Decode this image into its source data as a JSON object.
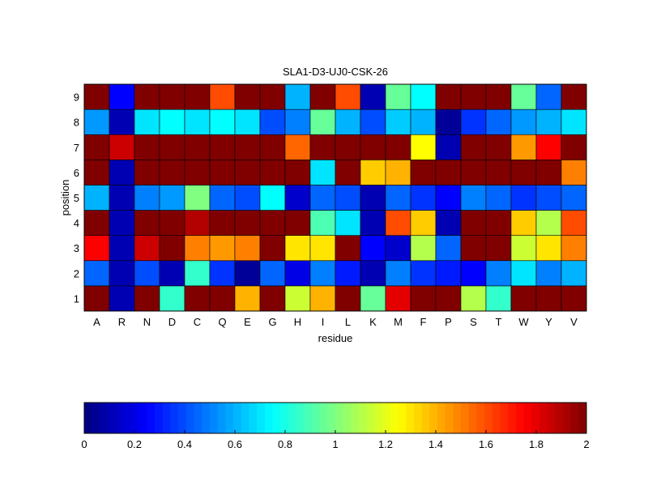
{
  "chart_data": {
    "type": "heatmap",
    "title": "SLA1-D3-UJ0-CSK-26",
    "xlabel": "residue",
    "ylabel": "position",
    "x_categories": [
      "A",
      "R",
      "N",
      "D",
      "C",
      "Q",
      "E",
      "G",
      "H",
      "I",
      "L",
      "K",
      "M",
      "F",
      "P",
      "S",
      "T",
      "W",
      "Y",
      "V"
    ],
    "y_categories": [
      "1",
      "2",
      "3",
      "4",
      "5",
      "6",
      "7",
      "8",
      "9"
    ],
    "values": [
      [
        2.0,
        0.1,
        2.0,
        0.85,
        2.0,
        2.0,
        1.4,
        2.0,
        1.15,
        1.4,
        2.0,
        0.95,
        1.8,
        2.0,
        2.0,
        1.1,
        0.85,
        2.0,
        2.0,
        2.0
      ],
      [
        0.45,
        0.1,
        0.4,
        0.1,
        0.85,
        0.35,
        0.05,
        0.45,
        0.2,
        0.5,
        0.3,
        0.1,
        0.5,
        0.35,
        0.3,
        0.25,
        0.5,
        0.7,
        0.5,
        0.6
      ],
      [
        1.75,
        0.1,
        1.85,
        2.0,
        1.5,
        1.45,
        1.5,
        2.0,
        1.3,
        1.3,
        2.0,
        0.25,
        0.15,
        1.1,
        0.45,
        2.0,
        2.0,
        1.15,
        1.3,
        1.5
      ],
      [
        2.0,
        0.1,
        2.0,
        2.0,
        1.9,
        2.0,
        2.0,
        2.0,
        2.0,
        0.9,
        0.7,
        0.1,
        1.6,
        1.35,
        0.1,
        2.0,
        2.0,
        1.35,
        1.1,
        1.6
      ],
      [
        0.6,
        0.1,
        0.5,
        0.55,
        1.0,
        0.45,
        0.4,
        0.75,
        0.15,
        0.45,
        0.4,
        0.1,
        0.45,
        0.35,
        0.25,
        0.5,
        0.45,
        0.35,
        0.4,
        0.45
      ],
      [
        2.0,
        0.1,
        2.0,
        2.0,
        2.0,
        2.0,
        2.0,
        2.0,
        2.0,
        0.7,
        2.0,
        1.35,
        1.4,
        2.0,
        2.0,
        2.0,
        2.0,
        2.0,
        2.0,
        1.5
      ],
      [
        2.0,
        1.85,
        2.0,
        2.0,
        2.0,
        2.0,
        2.0,
        2.0,
        1.55,
        2.0,
        2.0,
        2.0,
        2.0,
        1.25,
        0.1,
        2.0,
        2.0,
        1.45,
        1.75,
        2.0
      ],
      [
        0.55,
        0.1,
        0.7,
        0.75,
        0.7,
        0.75,
        0.7,
        0.4,
        0.5,
        0.95,
        0.6,
        0.4,
        0.65,
        0.6,
        0.05,
        0.35,
        0.45,
        0.55,
        0.6,
        0.7
      ],
      [
        2.0,
        0.25,
        2.0,
        2.0,
        2.0,
        1.6,
        2.0,
        2.0,
        0.6,
        2.0,
        1.6,
        0.1,
        0.95,
        0.75,
        2.0,
        2.0,
        2.0,
        0.95,
        0.45,
        2.0
      ]
    ],
    "colorbar": {
      "colormap": "jet",
      "range": [
        0,
        2
      ],
      "ticks": [
        "0",
        "0.2",
        "0.4",
        "0.6",
        "0.8",
        "1",
        "1.2",
        "1.4",
        "1.6",
        "1.8",
        "2"
      ]
    }
  }
}
